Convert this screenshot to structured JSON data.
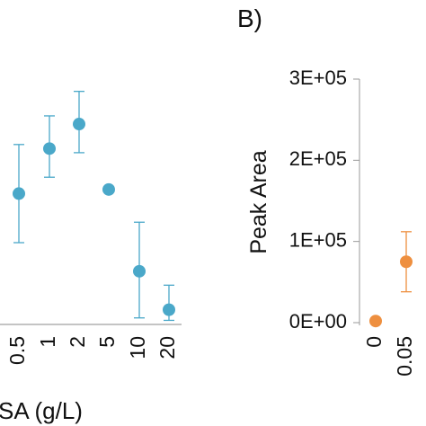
{
  "chart_data": [
    {
      "type": "scatter",
      "panel_label": "",
      "xlabel": "SA (g/L)",
      "ylabel": "",
      "categories": [
        "0.5",
        "1",
        "2",
        "5",
        "10",
        "20"
      ],
      "color": "#4aa8c9",
      "ylim": [
        0,
        300000
      ],
      "series": [
        {
          "values": [
            160000,
            215000,
            245000,
            165000,
            65000,
            18000
          ],
          "err_upper": [
            220000,
            255000,
            285000,
            null,
            125000,
            48000
          ],
          "err_lower": [
            100000,
            180000,
            210000,
            null,
            8000,
            5000
          ]
        }
      ]
    },
    {
      "type": "scatter",
      "panel_label": "B)",
      "xlabel": "",
      "ylabel": "Peak Area",
      "categories": [
        "0",
        "0.05"
      ],
      "color": "#ee8f3f",
      "ylim": [
        0,
        300000
      ],
      "yticks": [
        "0E+00",
        "1E+05",
        "2E+05",
        "3E+05"
      ],
      "series": [
        {
          "values": [
            2000,
            75000
          ],
          "err_upper": [
            null,
            112000
          ],
          "err_lower": [
            null,
            38000
          ]
        }
      ]
    }
  ]
}
